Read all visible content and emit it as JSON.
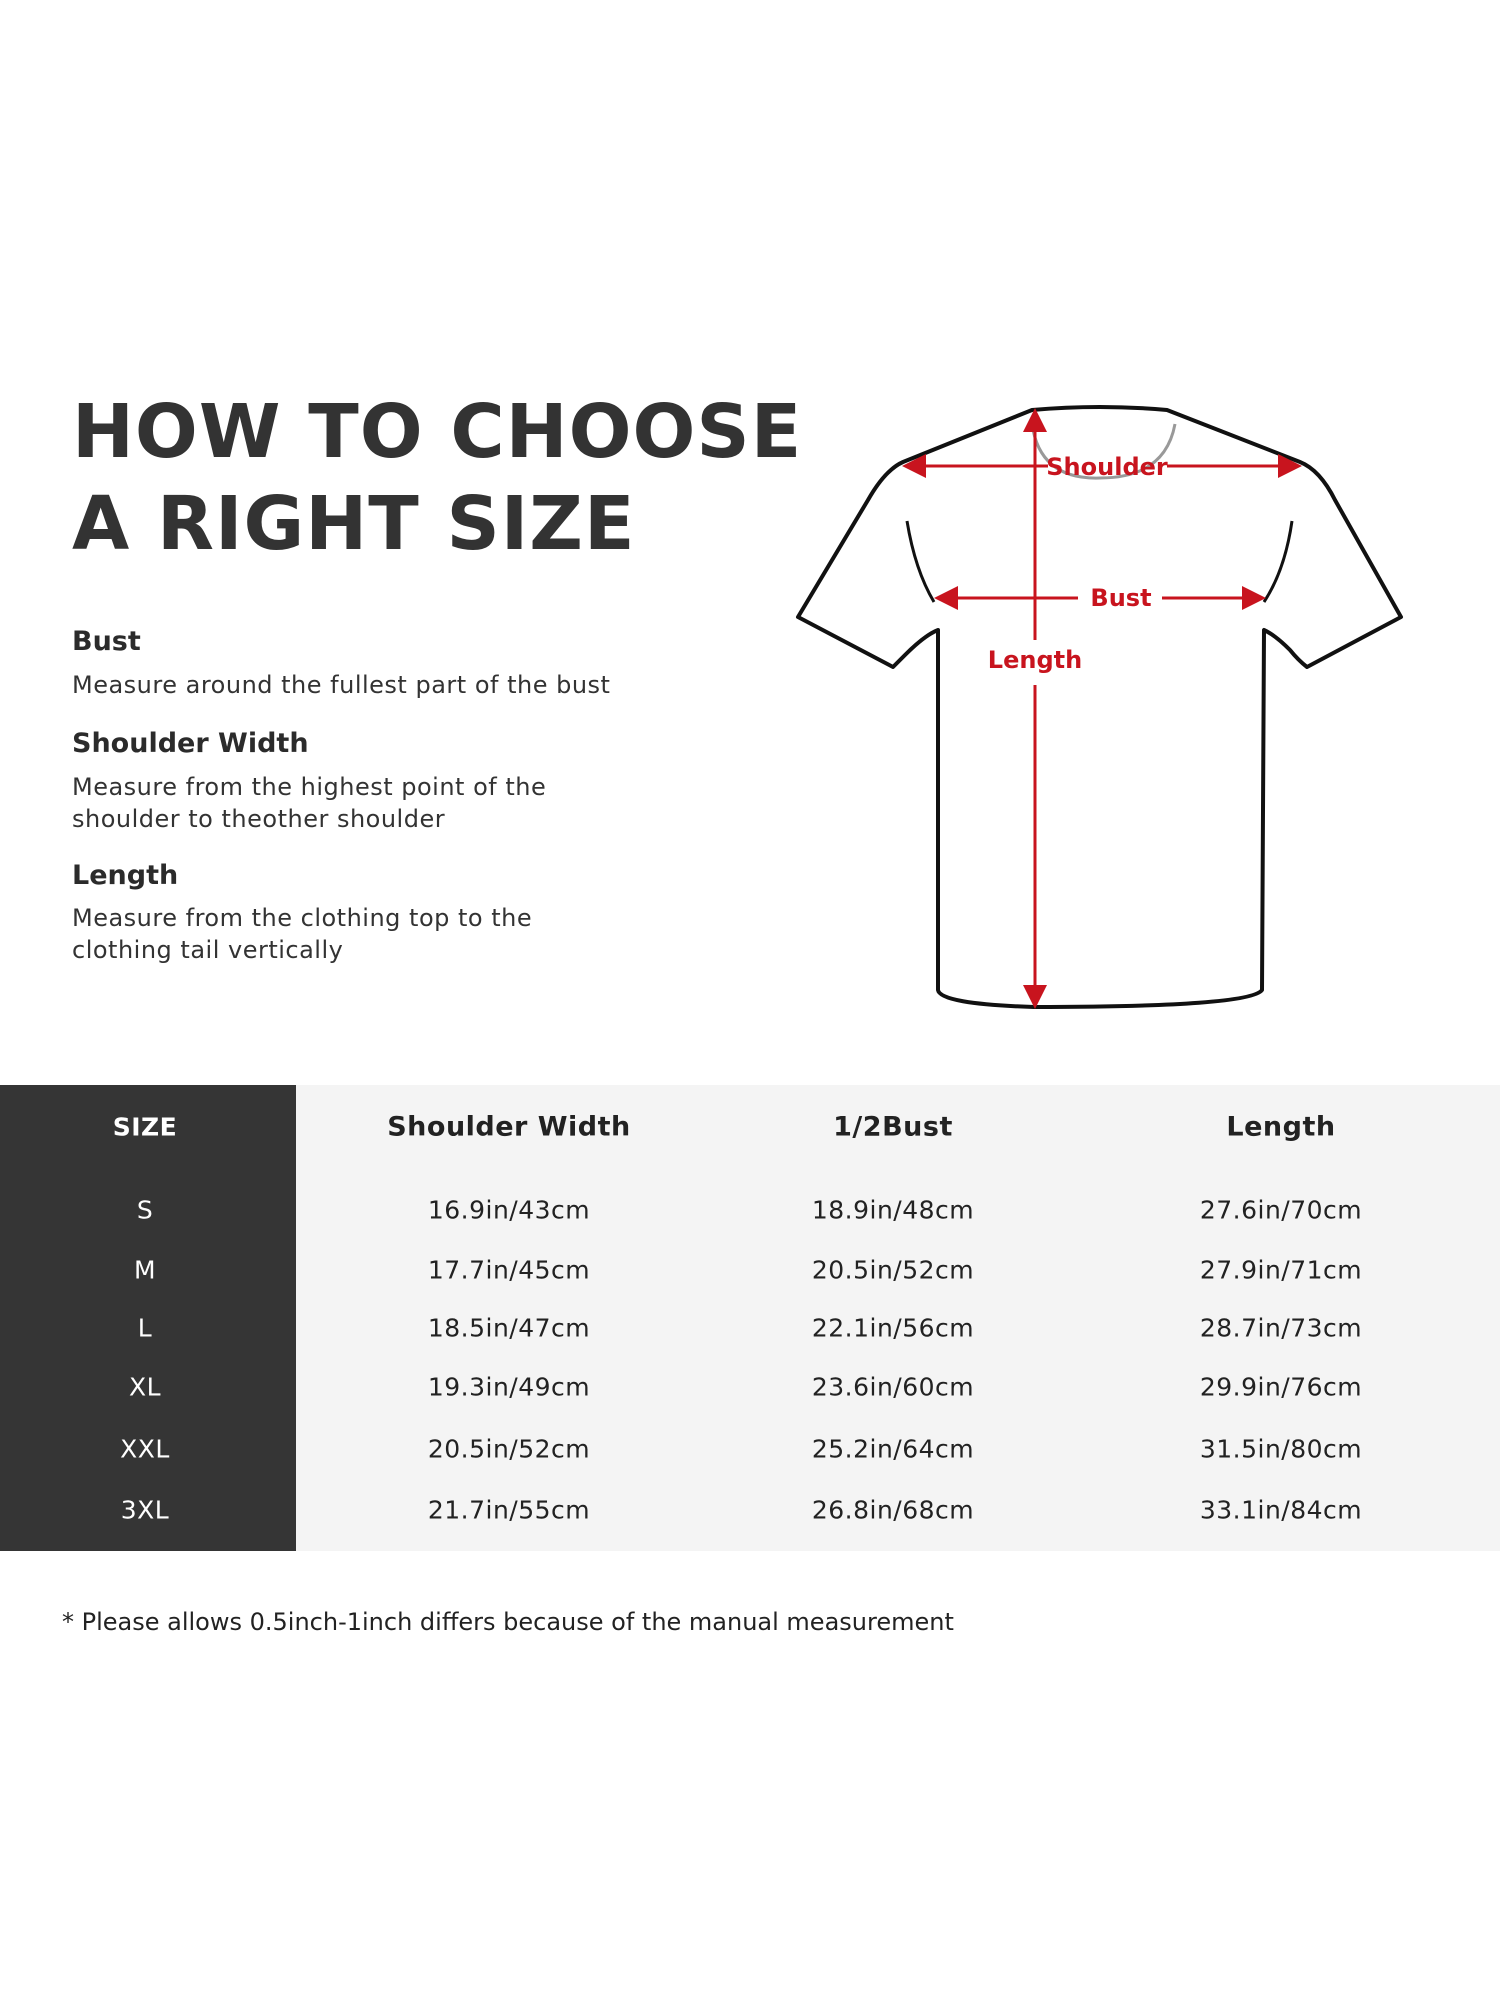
{
  "heading": {
    "line1": "HOW TO CHOOSE",
    "line2": "A RIGHT SIZE"
  },
  "guides": [
    {
      "title": "Bust",
      "lines": [
        "Measure around the fullest part of the bust"
      ]
    },
    {
      "title": "Shoulder Width",
      "lines": [
        "Measure from the highest point of the",
        "shoulder to theother shoulder"
      ]
    },
    {
      "title": "Length",
      "lines": [
        "Measure from the clothing top to the",
        "clothing tail vertically"
      ]
    }
  ],
  "diagram": {
    "shoulder_label": "Shoulder",
    "bust_label": "Bust",
    "length_label": "Length",
    "accent_color": "#c8141e"
  },
  "table": {
    "headers": [
      "SIZE",
      "Shoulder Width",
      "1/2Bust",
      "Length"
    ],
    "rows": [
      [
        "S",
        "16.9in/43cm",
        "18.9in/48cm",
        "27.6in/70cm"
      ],
      [
        "M",
        "17.7in/45cm",
        "20.5in/52cm",
        "27.9in/71cm"
      ],
      [
        "L",
        "18.5in/47cm",
        "22.1in/56cm",
        "28.7in/73cm"
      ],
      [
        "XL",
        "19.3in/49cm",
        "23.6in/60cm",
        "29.9in/76cm"
      ],
      [
        "XXL",
        "20.5in/52cm",
        "25.2in/64cm",
        "31.5in/80cm"
      ],
      [
        "3XL",
        "21.7in/55cm",
        "26.8in/68cm",
        "33.1in/84cm"
      ]
    ]
  },
  "footnote": "* Please allows 0.5inch-1inch differs because of the  manual measurement"
}
